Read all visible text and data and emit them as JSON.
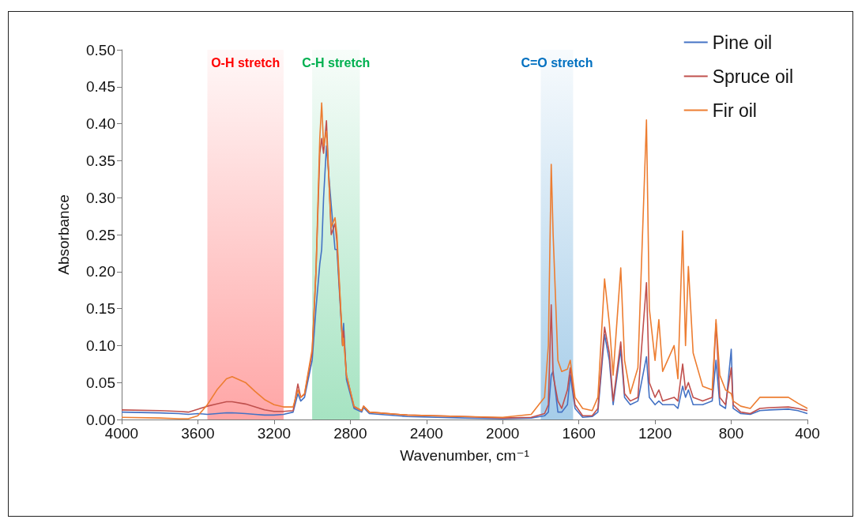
{
  "chart_data": {
    "type": "line",
    "xlabel": "Wavenumber, cm⁻¹",
    "ylabel": "Absorbance",
    "x": [
      4000,
      3800,
      3700,
      3650,
      3600,
      3550,
      3500,
      3450,
      3420,
      3350,
      3300,
      3250,
      3200,
      3150,
      3100,
      3075,
      3060,
      3040,
      3000,
      2980,
      2960,
      2950,
      2940,
      2925,
      2900,
      2880,
      2870,
      2840,
      2835,
      2820,
      2780,
      2740,
      2730,
      2700,
      2500,
      2200,
      2000,
      1850,
      1780,
      1760,
      1745,
      1735,
      1710,
      1690,
      1660,
      1645,
      1620,
      1580,
      1530,
      1500,
      1465,
      1440,
      1420,
      1380,
      1360,
      1330,
      1290,
      1245,
      1230,
      1200,
      1180,
      1160,
      1100,
      1080,
      1055,
      1040,
      1025,
      1000,
      950,
      900,
      880,
      860,
      830,
      800,
      790,
      750,
      700,
      650,
      600,
      500,
      450,
      400
    ],
    "series": [
      {
        "name": "Pine oil",
        "color": "#4472c4",
        "values": [
          0.01,
          0.009,
          0.008,
          0.007,
          0.008,
          0.007,
          0.008,
          0.009,
          0.009,
          0.008,
          0.007,
          0.006,
          0.006,
          0.007,
          0.01,
          0.035,
          0.025,
          0.03,
          0.08,
          0.15,
          0.21,
          0.23,
          0.3,
          0.37,
          0.29,
          0.23,
          0.23,
          0.1,
          0.13,
          0.054,
          0.015,
          0.01,
          0.016,
          0.008,
          0.004,
          0.002,
          0.001,
          0.002,
          0.005,
          0.01,
          0.06,
          0.065,
          0.01,
          0.01,
          0.02,
          0.06,
          0.015,
          0.003,
          0.004,
          0.01,
          0.115,
          0.08,
          0.02,
          0.095,
          0.03,
          0.02,
          0.025,
          0.085,
          0.03,
          0.02,
          0.025,
          0.02,
          0.02,
          0.015,
          0.045,
          0.03,
          0.04,
          0.02,
          0.02,
          0.025,
          0.08,
          0.02,
          0.015,
          0.095,
          0.015,
          0.008,
          0.007,
          0.012,
          0.013,
          0.014,
          0.012,
          0.008
        ]
      },
      {
        "name": "Spruce oil",
        "color": "#c0504d",
        "values": [
          0.013,
          0.012,
          0.011,
          0.01,
          0.014,
          0.018,
          0.021,
          0.024,
          0.024,
          0.021,
          0.017,
          0.013,
          0.011,
          0.011,
          0.012,
          0.048,
          0.03,
          0.034,
          0.09,
          0.2,
          0.36,
          0.38,
          0.36,
          0.404,
          0.25,
          0.265,
          0.24,
          0.1,
          0.12,
          0.06,
          0.017,
          0.012,
          0.018,
          0.01,
          0.006,
          0.004,
          0.002,
          0.003,
          0.008,
          0.02,
          0.155,
          0.06,
          0.025,
          0.015,
          0.04,
          0.07,
          0.02,
          0.005,
          0.005,
          0.015,
          0.125,
          0.09,
          0.025,
          0.105,
          0.035,
          0.025,
          0.03,
          0.185,
          0.05,
          0.03,
          0.04,
          0.025,
          0.03,
          0.025,
          0.075,
          0.04,
          0.05,
          0.03,
          0.025,
          0.03,
          0.13,
          0.03,
          0.02,
          0.07,
          0.02,
          0.01,
          0.008,
          0.015,
          0.016,
          0.017,
          0.015,
          0.012
        ]
      },
      {
        "name": "Fir oil",
        "color": "#ed7d31",
        "values": [
          0.003,
          0.002,
          0.001,
          0.001,
          0.005,
          0.02,
          0.04,
          0.055,
          0.058,
          0.05,
          0.038,
          0.027,
          0.02,
          0.017,
          0.017,
          0.04,
          0.03,
          0.035,
          0.095,
          0.2,
          0.38,
          0.428,
          0.37,
          0.39,
          0.26,
          0.273,
          0.25,
          0.1,
          0.11,
          0.06,
          0.018,
          0.012,
          0.018,
          0.01,
          0.006,
          0.004,
          0.003,
          0.007,
          0.03,
          0.1,
          0.345,
          0.25,
          0.08,
          0.065,
          0.068,
          0.08,
          0.03,
          0.015,
          0.012,
          0.03,
          0.19,
          0.13,
          0.06,
          0.205,
          0.08,
          0.035,
          0.07,
          0.405,
          0.15,
          0.08,
          0.135,
          0.065,
          0.1,
          0.055,
          0.255,
          0.1,
          0.207,
          0.09,
          0.045,
          0.04,
          0.135,
          0.06,
          0.04,
          0.035,
          0.025,
          0.018,
          0.015,
          0.03,
          0.03,
          0.03,
          0.022,
          0.015
        ]
      }
    ],
    "xlim": [
      4000,
      400
    ],
    "xticks": [
      4000,
      3600,
      3200,
      2800,
      2400,
      2000,
      1600,
      1200,
      800,
      400
    ],
    "ylim": [
      0,
      0.5
    ],
    "yticks": [
      {
        "value": 0,
        "label": "0.00"
      },
      {
        "value": 0.05,
        "label": "0.05"
      },
      {
        "value": 0.1,
        "label": "0.10"
      },
      {
        "value": 0.15,
        "label": "0.15"
      },
      {
        "value": 0.2,
        "label": "0.20"
      },
      {
        "value": 0.25,
        "label": "0.25"
      },
      {
        "value": 0.3,
        "label": "0.30"
      },
      {
        "value": 0.35,
        "label": "0.35"
      },
      {
        "value": 0.4,
        "label": "0.40"
      },
      {
        "value": 0.45,
        "label": "0.45"
      },
      {
        "value": 0.5,
        "label": "0.50"
      }
    ],
    "bands": [
      {
        "axis": "x",
        "from": 3550,
        "to": 3150,
        "label": "O-H stretch",
        "color": "#ff0000"
      },
      {
        "axis": "x",
        "from": 3000,
        "to": 2750,
        "label": "C-H stretch",
        "color": "#00b050"
      },
      {
        "axis": "x",
        "from": 1800,
        "to": 1630,
        "label": "C=O stretch",
        "color": "#0070c0"
      }
    ],
    "marker": "none",
    "grid": false,
    "legend": "top right"
  }
}
